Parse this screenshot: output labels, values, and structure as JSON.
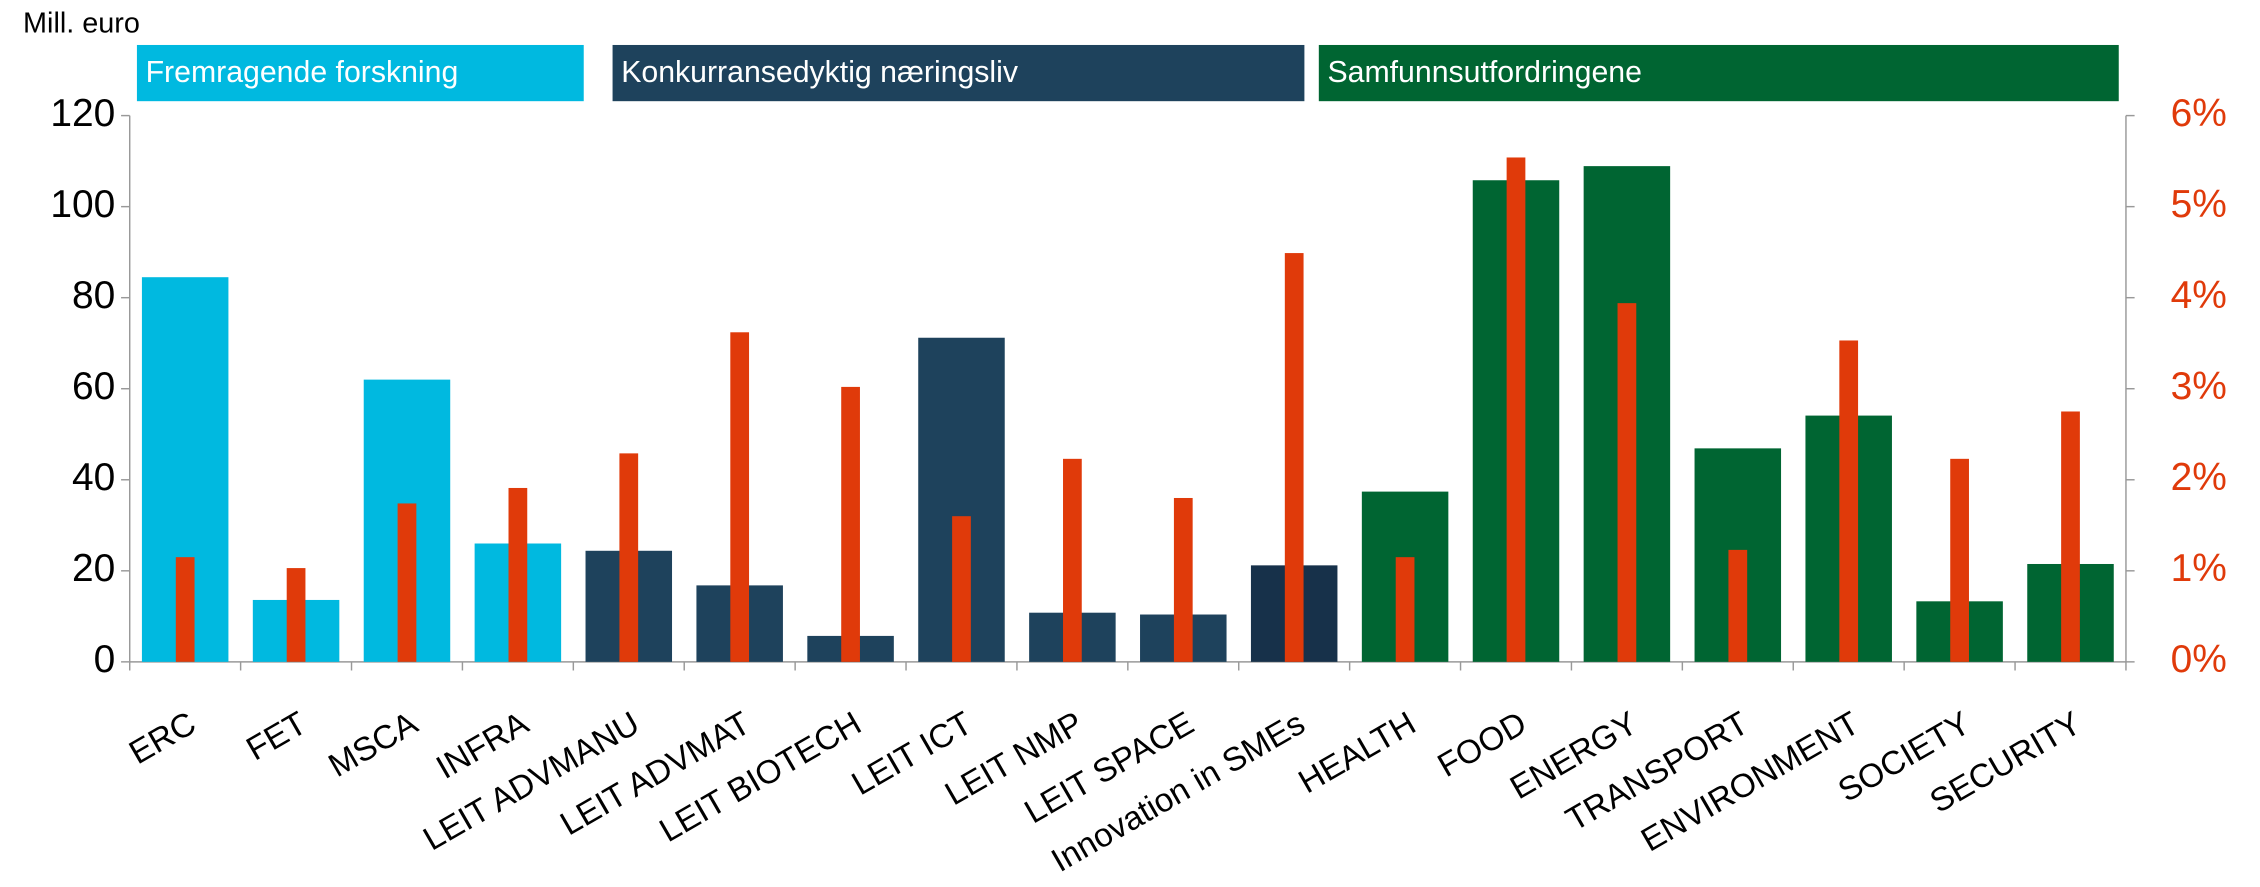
{
  "chart_data": {
    "type": "bar",
    "y_axis_title": "Mill. euro",
    "groups": [
      {
        "label": "Fremragende forskning",
        "color": "#00b9e0"
      },
      {
        "label": "Konkurransedyktig næringsliv",
        "color": "#1e425c"
      },
      {
        "label": "Samfunnsutfordringene",
        "color": "#006532"
      }
    ],
    "categories": [
      "ERC",
      "FET",
      "MSCA",
      "INFRA",
      "LEIT ADVMANU",
      "LEIT ADVMAT",
      "LEIT BIOTECH",
      "LEIT ICT",
      "LEIT NMP",
      "LEIT SPACE",
      "Innovation in SMEs",
      "HEALTH",
      "FOOD",
      "ENERGY",
      "TRANSPORT",
      "ENVIRONMENT",
      "SOCIETY",
      "SECURITY"
    ],
    "series": [
      {
        "values": [
          84.5,
          13.6,
          62,
          26,
          24.4,
          16.8,
          5.7,
          71.2,
          10.8,
          10.4,
          21.2,
          37.4,
          105.8,
          108.9,
          46.9,
          54.1,
          13.3,
          21.5
        ],
        "colors": [
          "#00b9e0",
          "#00b9e0",
          "#00b9e0",
          "#00b9e0",
          "#1e425c",
          "#1e425c",
          "#1e425c",
          "#1e425c",
          "#1e425c",
          "#1e425c",
          "#17314a",
          "#006532",
          "#006532",
          "#006532",
          "#006532",
          "#006532",
          "#006532",
          "#006532"
        ]
      },
      {
        "axis": "y2",
        "color": "#e03a0a",
        "values": [
          1.15,
          1.03,
          1.74,
          1.91,
          2.29,
          3.62,
          3.02,
          1.6,
          2.23,
          1.8,
          4.49,
          1.15,
          5.54,
          3.94,
          1.23,
          3.53,
          2.23,
          2.75
        ]
      }
    ],
    "ylim": [
      0,
      120
    ],
    "yticks": [
      0,
      20,
      40,
      60,
      80,
      100,
      120
    ],
    "y2lim": [
      0,
      6
    ],
    "y2ticks": [
      {
        "value": 0,
        "label": "0%"
      },
      {
        "value": 1,
        "label": "1%"
      },
      {
        "value": 2,
        "label": "2%"
      },
      {
        "value": 3,
        "label": "3%"
      },
      {
        "value": 4,
        "label": "4%"
      },
      {
        "value": 5,
        "label": "5%"
      },
      {
        "value": 6,
        "label": "6%"
      }
    ]
  }
}
